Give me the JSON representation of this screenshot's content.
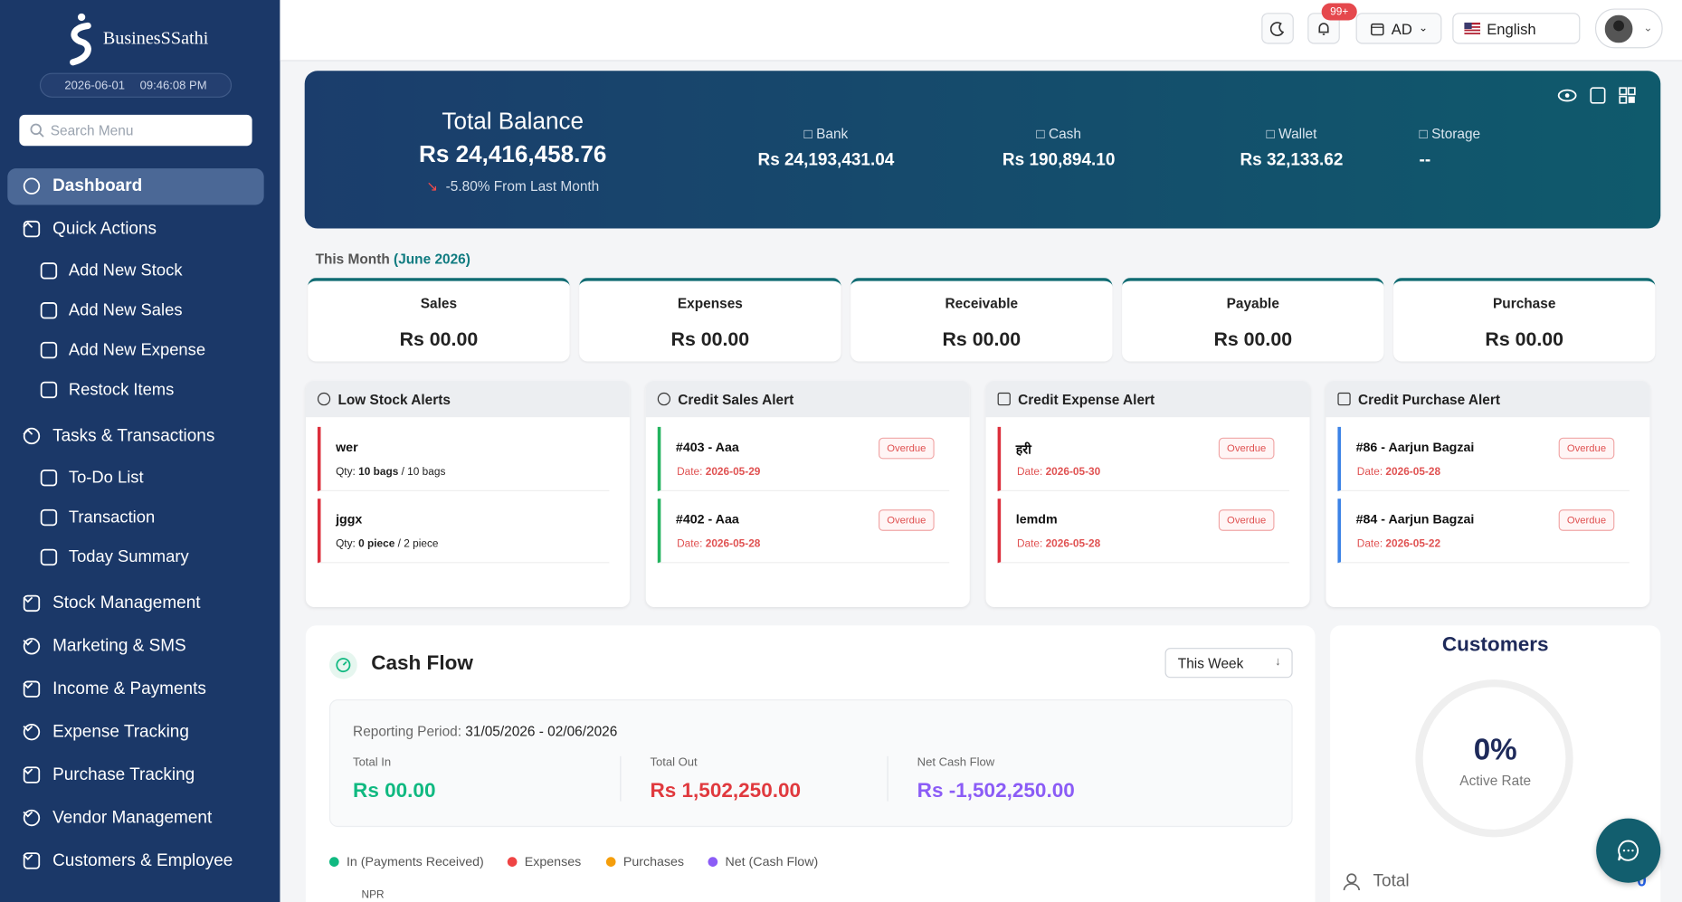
{
  "sidebar": {
    "brand": "BusinesSSathi",
    "date": "2026-06-01",
    "time": "09:46:08 PM",
    "search_placeholder": "Search Menu",
    "menu": [
      {
        "label": "Dashboard",
        "active": true
      },
      {
        "label": "Quick Actions",
        "children": [
          "Add New Stock",
          "Add New Sales",
          "Add New Expense",
          "Restock Items"
        ]
      },
      {
        "label": "Tasks & Transactions",
        "children": [
          "To-Do List",
          "Transaction",
          "Today Summary"
        ]
      },
      {
        "label": "Stock Management"
      },
      {
        "label": "Marketing & SMS"
      },
      {
        "label": "Income & Payments"
      },
      {
        "label": "Expense Tracking"
      },
      {
        "label": "Purchase Tracking"
      },
      {
        "label": "Vendor Management"
      },
      {
        "label": "Customers & Employee"
      }
    ]
  },
  "topbar": {
    "notifications": "99+",
    "calendar": "AD",
    "language": "English"
  },
  "balance": {
    "title": "Total Balance",
    "amount": "Rs 24,416,458.76",
    "change": "-5.80% From Last Month",
    "accounts": [
      {
        "name": "Bank",
        "amount": "Rs 24,193,431.04"
      },
      {
        "name": "Cash",
        "amount": "Rs 190,894.10"
      },
      {
        "name": "Wallet",
        "amount": "Rs 32,133.62"
      },
      {
        "name": "Storage",
        "amount": "--"
      }
    ]
  },
  "month": {
    "label": "This Month",
    "period": "(June 2026)",
    "cards": [
      {
        "name": "Sales",
        "amount": "Rs 00.00"
      },
      {
        "name": "Expenses",
        "amount": "Rs 00.00"
      },
      {
        "name": "Receivable",
        "amount": "Rs 00.00"
      },
      {
        "name": "Payable",
        "amount": "Rs 00.00"
      },
      {
        "name": "Purchase",
        "amount": "Rs 00.00"
      }
    ]
  },
  "alerts": [
    {
      "title": "Low Stock Alerts",
      "accent": "#dc2f3c",
      "items": [
        {
          "name": "wer",
          "detail_label": "Qty:",
          "detail": "10 bags",
          "extra": "/ 10 bags"
        },
        {
          "name": "jggx",
          "detail_label": "Qty:",
          "detail": "0 piece",
          "extra": "/ 2 piece"
        }
      ]
    },
    {
      "title": "Credit Sales Alert",
      "accent": "#22b35e",
      "items": [
        {
          "name": "#403 - Aaa",
          "badge": "Overdue",
          "detail_label": "Date:",
          "detail": "2026-05-29"
        },
        {
          "name": "#402 - Aaa",
          "badge": "Overdue",
          "detail_label": "Date:",
          "detail": "2026-05-28"
        }
      ]
    },
    {
      "title": "Credit Expense Alert",
      "accent": "#dc2f3c",
      "items": [
        {
          "name": "हरी",
          "badge": "Overdue",
          "detail_label": "Date:",
          "detail": "2026-05-30"
        },
        {
          "name": "lemdm",
          "badge": "Overdue",
          "detail_label": "Date:",
          "detail": "2026-05-28"
        }
      ]
    },
    {
      "title": "Credit Purchase Alert",
      "accent": "#3b82e6",
      "items": [
        {
          "name": "#86 - Aarjun Bagzai",
          "badge": "Overdue",
          "detail_label": "Date:",
          "detail": "2026-05-28"
        },
        {
          "name": "#84 - Aarjun Bagzai",
          "badge": "Overdue",
          "detail_label": "Date:",
          "detail": "2026-05-22"
        }
      ]
    }
  ],
  "cash_flow": {
    "title": "Cash Flow",
    "filter": "This Week",
    "period_label": "Reporting Period:",
    "period": "31/05/2026 - 02/06/2026",
    "stats": [
      {
        "label": "Total In",
        "value": "Rs 00.00",
        "color": "#10b981"
      },
      {
        "label": "Total Out",
        "value": "Rs 1,502,250.00",
        "color": "#e0393e"
      },
      {
        "label": "Net Cash Flow",
        "value": "Rs -1,502,250.00",
        "color": "#8b5cf6"
      }
    ],
    "legend": [
      {
        "name": "In (Payments Received)",
        "color": "#10b981"
      },
      {
        "name": "Expenses",
        "color": "#ef4444"
      },
      {
        "name": "Purchases",
        "color": "#f59e0b"
      },
      {
        "name": "Net (Cash Flow)",
        "color": "#8b5cf6"
      }
    ],
    "axis_label": "NPR"
  },
  "customers": {
    "title": "Customers",
    "rate": "0%",
    "rate_label": "Active Rate",
    "total_label": "Total",
    "total": "0"
  }
}
